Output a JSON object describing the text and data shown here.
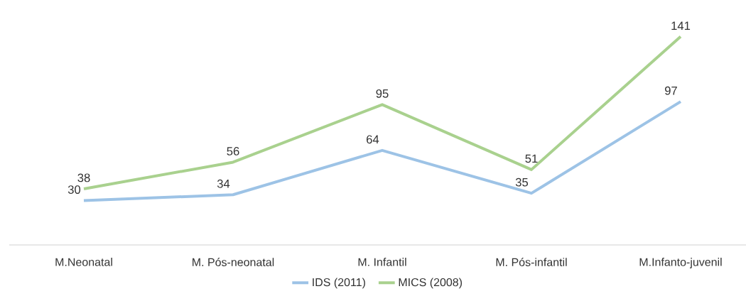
{
  "chart_data": {
    "type": "line",
    "categories": [
      "M.Neonatal",
      "M. Pós-neonatal",
      "M. Infantil",
      "M. Pós-infantil",
      "M.Infanto-juvenil"
    ],
    "series": [
      {
        "name": "IDS (2011)",
        "color": "#9dc3e6",
        "values": [
          30,
          34,
          64,
          35,
          97
        ]
      },
      {
        "name": "MICS (2008)",
        "color": "#a9d18e",
        "values": [
          38,
          56,
          95,
          51,
          141
        ]
      }
    ],
    "data_labels": true,
    "legend": "bottom",
    "marker": "none",
    "line_style": "solid"
  }
}
